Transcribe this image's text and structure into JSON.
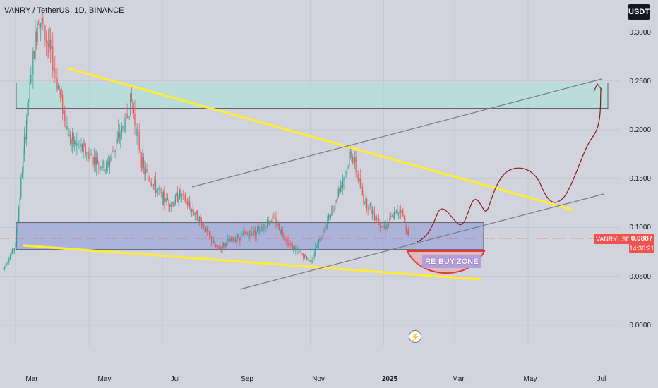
{
  "header": {
    "title": "VANRY / TetherUS, 1D, BINANCE"
  },
  "currency_button": {
    "label": "USDT"
  },
  "y_axis_labels": [
    "0.3000",
    "0.2500",
    "0.2000",
    "0.1500",
    "0.1000",
    "0.0500",
    "0.0000"
  ],
  "x_axis_labels": [
    "Mar",
    "May",
    "Jul",
    "Sep",
    "Nov",
    "2025",
    "Mar",
    "May",
    "Jul"
  ],
  "price_marker": {
    "symbol": "VANRYUSDT",
    "price": "0.0887",
    "countdown": "14:36:21"
  },
  "annotation": {
    "label": "RE-BUY ZONE"
  },
  "colors": {
    "up": "#26a69a",
    "down": "#ef5350",
    "trendline": "#ffeb3b",
    "channel": "#787b86",
    "projection": "#8b1a1a",
    "supply_zone": "#b2dfdb",
    "demand_zone": "#9fa8da"
  },
  "icons": {
    "flash": "flash-icon"
  },
  "chart_data": {
    "type": "line",
    "symbol": "VANRY / TetherUS",
    "interval": "1D",
    "exchange": "BINANCE",
    "x": [
      "2024-02-20",
      "2024-03-01",
      "2024-03-10",
      "2024-03-20",
      "2024-04-01",
      "2024-04-15",
      "2024-05-01",
      "2024-05-15",
      "2024-06-01",
      "2024-06-05",
      "2024-06-15",
      "2024-07-01",
      "2024-07-10",
      "2024-07-15",
      "2024-08-01",
      "2024-08-15",
      "2024-09-01",
      "2024-09-15",
      "2024-10-01",
      "2024-10-15",
      "2024-11-01",
      "2024-11-15",
      "2024-12-01",
      "2024-12-05",
      "2024-12-15",
      "2025-01-01",
      "2025-01-15",
      "2025-01-22"
    ],
    "series": [
      {
        "values": [
          0.058,
          0.082,
          0.21,
          0.32,
          0.27,
          0.19,
          0.175,
          0.16,
          0.21,
          0.232,
          0.16,
          0.13,
          0.125,
          0.135,
          0.108,
          0.078,
          0.09,
          0.095,
          0.11,
          0.082,
          0.065,
          0.105,
          0.16,
          0.178,
          0.13,
          0.1,
          0.12,
          0.0887
        ]
      }
    ],
    "ylim": [
      -0.02,
      0.34
    ],
    "grid": true,
    "last_price": 0.0887,
    "zones": [
      {
        "type": "supply",
        "from": 0.222,
        "to": 0.248
      },
      {
        "type": "demand",
        "from": 0.0775,
        "to": 0.105
      }
    ]
  }
}
